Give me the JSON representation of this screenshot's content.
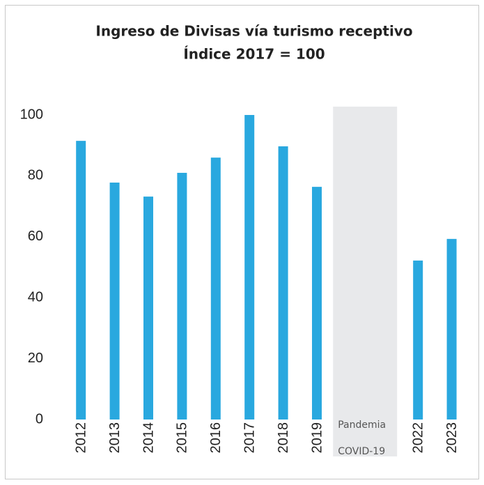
{
  "chart_data": {
    "type": "bar",
    "title": "Ingreso de Divisas vía turismo receptivo",
    "subtitle": "Índice 2017 = 100",
    "categories": [
      "2012",
      "2013",
      "2014",
      "2015",
      "2016",
      "2017",
      "2018",
      "2019",
      null,
      null,
      "2022",
      "2023"
    ],
    "values": [
      91.5,
      77.8,
      73.2,
      81,
      86,
      100,
      89.7,
      76.4,
      null,
      null,
      52.2,
      59.3
    ],
    "color": "#29a8df",
    "ylim": [
      0,
      100
    ],
    "yticks": [
      0,
      20,
      40,
      60,
      80,
      100
    ],
    "grid": false,
    "annotations": [
      "Pandemia",
      "COVID-19"
    ]
  }
}
